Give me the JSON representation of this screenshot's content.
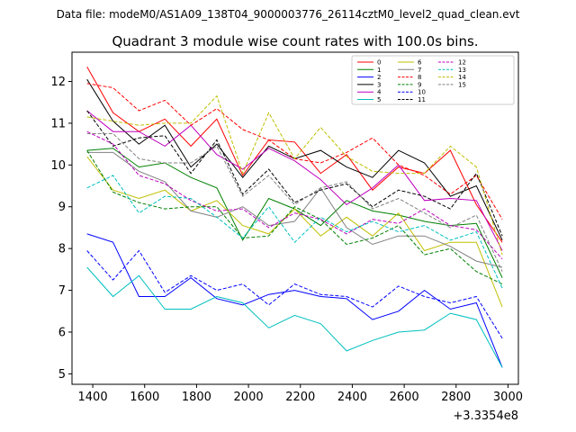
{
  "figure": {
    "suptitle": "Data file: modeM0/AS1A09_138T04_9000003776_26114cztM0_level2_quad_clean.evt"
  },
  "chart_data": {
    "type": "line",
    "title": "Quadrant 3 module wise count rates with 100.0s bins.",
    "xlabel": "",
    "ylabel": "",
    "x_offset_label": "+3.3354e8",
    "xlim": [
      1320,
      3040
    ],
    "ylim": [
      4.75,
      12.7
    ],
    "xticks": [
      1400,
      1600,
      1800,
      2000,
      2200,
      2400,
      2600,
      2800,
      3000
    ],
    "yticks": [
      5,
      6,
      7,
      8,
      9,
      10,
      11,
      12
    ],
    "legend_position": "top-right",
    "x": [
      1378,
      1478,
      1578,
      1678,
      1778,
      1878,
      1978,
      2078,
      2178,
      2278,
      2378,
      2478,
      2578,
      2678,
      2778,
      2878,
      2978
    ],
    "series": [
      {
        "name": "0",
        "color": "#ff0000",
        "dash": false,
        "values": [
          12.35,
          11.25,
          10.8,
          11.1,
          10.45,
          11.1,
          9.75,
          10.6,
          10.55,
          9.8,
          10.25,
          9.4,
          9.95,
          9.8,
          10.35,
          9.05,
          8.15
        ]
      },
      {
        "name": "1",
        "color": "#008000",
        "dash": false,
        "values": [
          10.35,
          10.4,
          9.95,
          10.05,
          9.7,
          9.45,
          8.2,
          9.2,
          8.95,
          8.55,
          9.15,
          8.9,
          8.8,
          8.65,
          8.55,
          8.6,
          7.3
        ]
      },
      {
        "name": "2",
        "color": "#0000ff",
        "dash": false,
        "values": [
          8.35,
          8.15,
          6.85,
          6.85,
          7.3,
          6.8,
          6.65,
          6.9,
          7.0,
          6.85,
          6.8,
          6.3,
          6.5,
          7.0,
          6.55,
          6.7,
          5.15
        ]
      },
      {
        "name": "3",
        "color": "#000000",
        "dash": false,
        "values": [
          12.05,
          11.05,
          10.5,
          10.95,
          9.95,
          10.5,
          9.7,
          10.45,
          10.15,
          10.35,
          9.95,
          9.7,
          10.35,
          10.05,
          9.25,
          9.5,
          8.2
        ]
      },
      {
        "name": "4",
        "color": "#bf00bf",
        "dash": false,
        "values": [
          11.3,
          10.8,
          10.8,
          10.45,
          10.95,
          10.25,
          9.9,
          10.4,
          10.1,
          9.65,
          9.05,
          9.45,
          10.0,
          9.15,
          9.2,
          9.15,
          7.95
        ]
      },
      {
        "name": "5",
        "color": "#00bfbf",
        "dash": false,
        "values": [
          7.55,
          6.85,
          7.35,
          6.55,
          6.55,
          6.85,
          6.7,
          6.1,
          6.4,
          6.2,
          5.55,
          5.8,
          6.0,
          6.05,
          6.45,
          6.3,
          5.15
        ]
      },
      {
        "name": "6",
        "color": "#bfbf00",
        "dash": false,
        "values": [
          10.2,
          9.4,
          9.2,
          9.4,
          8.9,
          9.15,
          8.55,
          8.35,
          8.95,
          8.3,
          8.75,
          8.3,
          8.85,
          7.95,
          8.15,
          8.15,
          6.6
        ]
      },
      {
        "name": "7",
        "color": "#808080",
        "dash": false,
        "values": [
          10.3,
          10.3,
          9.85,
          9.6,
          8.9,
          8.75,
          9.0,
          8.55,
          8.65,
          9.45,
          8.5,
          8.1,
          8.3,
          8.3,
          8.05,
          7.7,
          7.55
        ]
      },
      {
        "name": "8",
        "color": "#ff0000",
        "dash": true,
        "values": [
          11.95,
          11.85,
          11.3,
          11.55,
          10.95,
          11.35,
          10.85,
          10.6,
          10.15,
          10.05,
          10.3,
          10.65,
          10.0,
          9.75,
          9.3,
          9.75,
          8.7
        ]
      },
      {
        "name": "9",
        "color": "#008000",
        "dash": true,
        "values": [
          10.35,
          9.35,
          9.1,
          8.95,
          9.0,
          9.0,
          8.25,
          8.3,
          9.0,
          8.7,
          8.1,
          8.25,
          8.55,
          7.85,
          8.0,
          7.45,
          7.15
        ]
      },
      {
        "name": "10",
        "color": "#0000ff",
        "dash": true,
        "values": [
          7.95,
          7.25,
          7.95,
          6.95,
          7.35,
          7.0,
          7.15,
          6.65,
          7.15,
          6.9,
          6.85,
          6.6,
          7.1,
          6.85,
          6.7,
          6.85,
          5.85
        ]
      },
      {
        "name": "11",
        "color": "#000000",
        "dash": true,
        "values": [
          11.3,
          10.45,
          10.65,
          10.7,
          9.8,
          10.6,
          9.3,
          9.9,
          9.1,
          9.4,
          9.55,
          9.0,
          9.4,
          9.25,
          8.95,
          9.8,
          8.3
        ]
      },
      {
        "name": "12",
        "color": "#bf00bf",
        "dash": true,
        "values": [
          10.8,
          10.5,
          9.75,
          9.55,
          9.15,
          8.9,
          8.95,
          8.5,
          8.85,
          8.7,
          8.35,
          8.7,
          8.6,
          8.95,
          8.55,
          8.45,
          7.75
        ]
      },
      {
        "name": "13",
        "color": "#00bfbf",
        "dash": true,
        "values": [
          9.45,
          9.75,
          8.85,
          9.25,
          9.2,
          8.75,
          8.25,
          9.0,
          8.15,
          8.75,
          8.4,
          8.65,
          8.4,
          8.55,
          8.2,
          8.4,
          7.05
        ]
      },
      {
        "name": "14",
        "color": "#bfbf00",
        "dash": true,
        "values": [
          11.15,
          11.05,
          10.95,
          11.0,
          11.0,
          11.65,
          9.8,
          11.25,
          10.15,
          10.9,
          10.2,
          9.85,
          9.8,
          9.8,
          10.45,
          9.95,
          7.85
        ]
      },
      {
        "name": "15",
        "color": "#808080",
        "dash": true,
        "values": [
          10.75,
          10.75,
          10.15,
          10.05,
          10.05,
          10.45,
          9.25,
          9.75,
          9.05,
          9.45,
          9.6,
          8.95,
          9.2,
          8.85,
          8.5,
          8.8,
          7.45
        ]
      }
    ]
  }
}
